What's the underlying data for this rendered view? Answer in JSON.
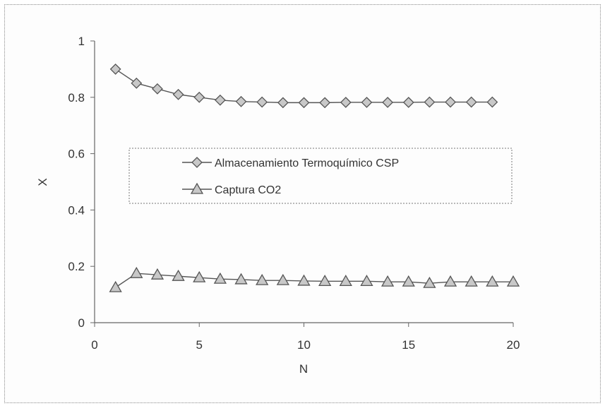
{
  "chart_data": {
    "type": "line",
    "title": "",
    "xlabel": "N",
    "ylabel": "X",
    "xlim": [
      0,
      20
    ],
    "ylim": [
      0,
      1
    ],
    "xticks": [
      "0",
      "5",
      "10",
      "15",
      "20"
    ],
    "yticks": [
      "0",
      "0.2",
      "0.4",
      "0.6",
      "0.8",
      "1"
    ],
    "grid": false,
    "legend_position": "center-left",
    "series": [
      {
        "name": "Almacenamiento Termoquímico CSP",
        "marker": "diamond",
        "color": "#555555",
        "x": [
          1,
          2,
          3,
          4,
          5,
          6,
          7,
          8,
          9,
          10,
          11,
          12,
          13,
          14,
          15,
          16,
          17,
          18,
          19
        ],
        "y": [
          0.9,
          0.85,
          0.83,
          0.81,
          0.8,
          0.79,
          0.785,
          0.783,
          0.781,
          0.781,
          0.781,
          0.782,
          0.782,
          0.782,
          0.782,
          0.783,
          0.783,
          0.783,
          0.783
        ]
      },
      {
        "name": "Captura CO2",
        "marker": "triangle",
        "color": "#555555",
        "x": [
          1,
          2,
          3,
          4,
          5,
          6,
          7,
          8,
          9,
          10,
          11,
          12,
          13,
          14,
          15,
          16,
          17,
          18,
          19,
          20
        ],
        "y": [
          0.125,
          0.175,
          0.17,
          0.165,
          0.16,
          0.155,
          0.153,
          0.15,
          0.15,
          0.148,
          0.147,
          0.147,
          0.147,
          0.145,
          0.145,
          0.14,
          0.145,
          0.145,
          0.145,
          0.145
        ]
      }
    ]
  }
}
